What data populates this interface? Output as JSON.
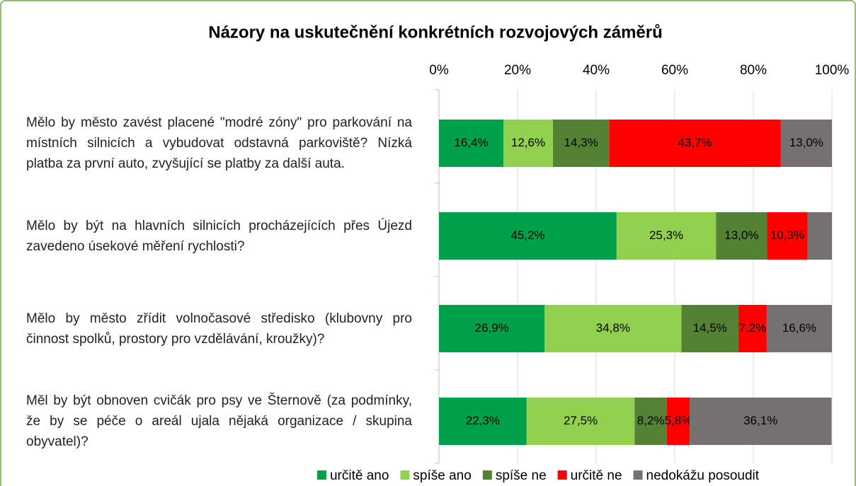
{
  "chart_data": {
    "type": "stacked_bar_horizontal",
    "title": "Názory na uskutečnění konkrétních rozvojových záměrů",
    "categories": [
      "Mělo by město zavést placené \"modré zóny\" pro parkování na místních silnicích a vybudovat odstavná parkoviště? Nízká platba za první auto, zvyšující se platby za další auta.",
      "Mělo by být na hlavních silnicích procházejících přes Újezd zavedeno úsekové měření rychlosti?",
      "Mělo by město zřídit volnočasové středisko (klubovny pro činnost spolků, prostory pro vzdělávání, kroužky)?",
      "Měl by být obnoven cvičák pro psy ve Šternově (za podmínky, že by se péče o areál ujala nějaká organizace / skupina obyvatel)?"
    ],
    "series": [
      {
        "name": "určitě ano",
        "color": "#00a04a",
        "values": [
          16.4,
          45.2,
          26.9,
          22.3
        ],
        "value_labels": [
          "16,4%",
          "45,2%",
          "26,9%",
          "22,3%"
        ]
      },
      {
        "name": "spíše ano",
        "color": "#92d050",
        "values": [
          12.6,
          25.3,
          34.8,
          27.5
        ],
        "value_labels": [
          "12,6%",
          "25,3%",
          "34,8%",
          "27,5%"
        ]
      },
      {
        "name": "spíše ne",
        "color": "#548235",
        "values": [
          14.3,
          13.0,
          14.5,
          8.2
        ],
        "value_labels": [
          "14,3%",
          "13,0%",
          "14,5%",
          "8,2%"
        ]
      },
      {
        "name": "určitě ne",
        "color": "#ff0000",
        "values": [
          43.7,
          10.3,
          7.2,
          5.8
        ],
        "value_labels": [
          "43,7%",
          "10,3%",
          "7,2%",
          "5,8%"
        ]
      },
      {
        "name": "nedokážu posoudit",
        "color": "#767171",
        "values": [
          13.0,
          6.2,
          16.6,
          36.1
        ],
        "value_labels": [
          "13,0%",
          null,
          "16,6%",
          "36,1%"
        ]
      }
    ],
    "xlim": [
      0,
      100
    ],
    "xticks": [
      {
        "value": 0,
        "label": "0%"
      },
      {
        "value": 20,
        "label": "20%"
      },
      {
        "value": 40,
        "label": "40%"
      },
      {
        "value": 60,
        "label": "60%"
      },
      {
        "value": 80,
        "label": "80%"
      },
      {
        "value": 100,
        "label": "100%"
      }
    ],
    "grid": true,
    "legend": "bottom"
  }
}
